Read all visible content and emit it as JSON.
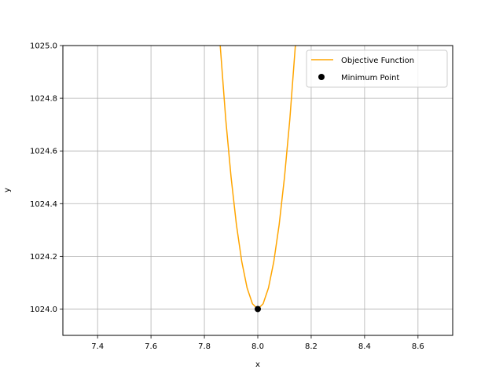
{
  "chart_data": {
    "type": "line",
    "title": "",
    "xlabel": "x",
    "ylabel": "y",
    "xlim": [
      7.27,
      8.73
    ],
    "ylim": [
      1023.9,
      1025.0
    ],
    "x_ticks": [
      7.4,
      7.6,
      7.8,
      8.0,
      8.2,
      8.4,
      8.6
    ],
    "x_tick_labels": [
      "7.4",
      "7.6",
      "7.8",
      "8.0",
      "8.2",
      "8.4",
      "8.6"
    ],
    "y_ticks": [
      1024.0,
      1024.2,
      1024.4,
      1024.6,
      1024.8,
      1025.0
    ],
    "y_tick_labels": [
      "1024.0",
      "1024.2",
      "1024.4",
      "1024.6",
      "1024.8",
      "1025.0"
    ],
    "grid": true,
    "legend_position": "top-right",
    "series": [
      {
        "name": "Objective Function",
        "kind": "line",
        "color": "#ffa500",
        "function": "y = 1024 + 50*(x - 8)^2",
        "x": [
          7.85,
          7.88,
          7.9,
          7.92,
          7.94,
          7.96,
          7.98,
          8.0,
          8.02,
          8.04,
          8.06,
          8.08,
          8.1,
          8.12,
          8.15
        ],
        "y": [
          1025.125,
          1024.72,
          1024.5,
          1024.32,
          1024.18,
          1024.08,
          1024.02,
          1024.0,
          1024.02,
          1024.08,
          1024.18,
          1024.32,
          1024.5,
          1024.72,
          1025.125
        ]
      },
      {
        "name": "Minimum Point",
        "kind": "scatter",
        "color": "#000000",
        "x": [
          8.0
        ],
        "y": [
          1024.0
        ]
      }
    ]
  }
}
